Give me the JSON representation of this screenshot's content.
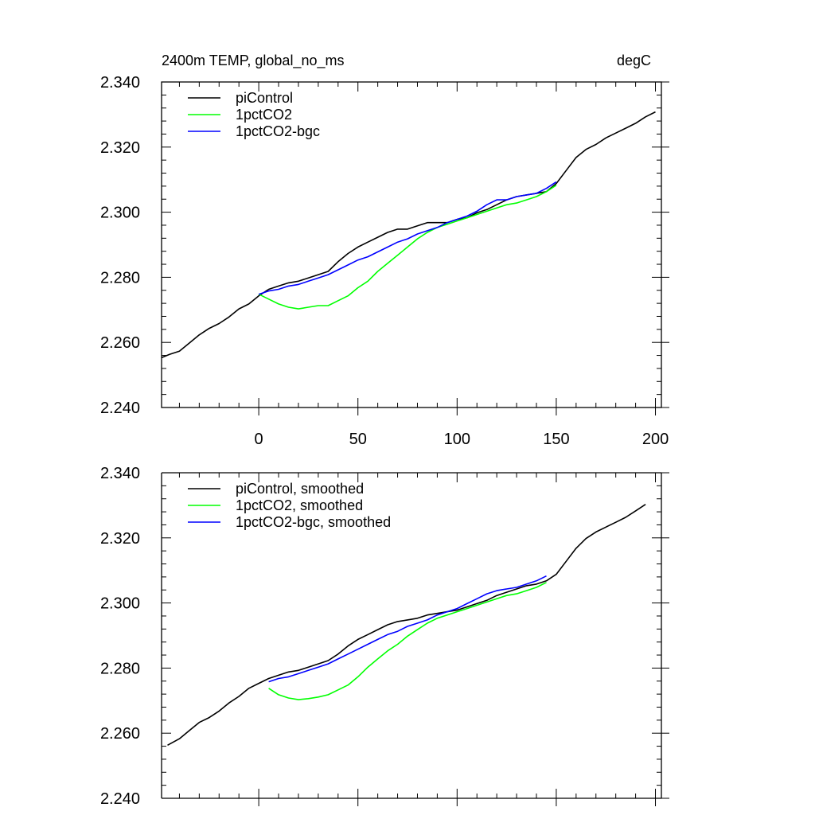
{
  "chart_data": [
    {
      "type": "line",
      "title": "2400m TEMP, global_no_ms",
      "units": "degC",
      "xlabel": "",
      "ylabel": "",
      "xlim": [
        -49,
        203
      ],
      "ylim": [
        2.24,
        2.34
      ],
      "x_ticks": [
        0,
        50,
        100,
        150,
        200
      ],
      "y_ticks": [
        "2.240",
        "2.260",
        "2.280",
        "2.300",
        "2.320",
        "2.340"
      ],
      "grid": false,
      "legend_position": "top-left",
      "series": [
        {
          "name": "piControl",
          "color": "#000000",
          "x": [
            -49,
            -45,
            -40,
            -35,
            -30,
            -25,
            -20,
            -15,
            -10,
            -5,
            0,
            5,
            10,
            15,
            20,
            25,
            30,
            35,
            40,
            45,
            50,
            55,
            60,
            65,
            70,
            75,
            80,
            85,
            90,
            95,
            100,
            105,
            110,
            115,
            120,
            125,
            130,
            135,
            140,
            145,
            150,
            155,
            160,
            165,
            170,
            175,
            180,
            185,
            190,
            195,
            200
          ],
          "y": [
            2.2553,
            2.2563,
            2.2573,
            2.2598,
            2.2623,
            2.2643,
            2.2658,
            2.2678,
            2.2703,
            2.2718,
            2.2743,
            2.2763,
            2.2773,
            2.2783,
            2.2788,
            2.2798,
            2.2808,
            2.2818,
            2.2848,
            2.2873,
            2.2893,
            2.2908,
            2.2923,
            2.2938,
            2.2948,
            2.2948,
            2.2958,
            2.2968,
            2.2968,
            2.2968,
            2.2978,
            2.2983,
            2.2998,
            2.3008,
            2.3023,
            2.3038,
            2.3048,
            2.3053,
            2.3058,
            2.3063,
            2.3088,
            2.3128,
            2.3168,
            2.3193,
            2.3208,
            2.3228,
            2.3243,
            2.3258,
            2.3273,
            2.3293,
            2.3308
          ]
        },
        {
          "name": "1pctCO2",
          "color": "#00ff00",
          "x": [
            0,
            5,
            10,
            15,
            20,
            25,
            30,
            35,
            40,
            45,
            50,
            55,
            60,
            65,
            70,
            75,
            80,
            85,
            90,
            95,
            100,
            105,
            110,
            115,
            120,
            125,
            130,
            135,
            140,
            145,
            150
          ],
          "y": [
            2.2748,
            2.2733,
            2.2718,
            2.2708,
            2.2703,
            2.2708,
            2.2713,
            2.2713,
            2.2728,
            2.2743,
            2.2768,
            2.2788,
            2.2818,
            2.2843,
            2.2868,
            2.2893,
            2.2918,
            2.2938,
            2.2953,
            2.2963,
            2.2973,
            2.2983,
            2.2993,
            2.3003,
            2.3013,
            2.3023,
            2.3028,
            2.3038,
            2.3048,
            2.3063,
            2.3083
          ]
        },
        {
          "name": "1pctCO2-bgc",
          "color": "#0000ff",
          "x": [
            0,
            5,
            10,
            15,
            20,
            25,
            30,
            35,
            40,
            45,
            50,
            55,
            60,
            65,
            70,
            75,
            80,
            85,
            90,
            95,
            100,
            105,
            110,
            115,
            120,
            125,
            130,
            135,
            140,
            145,
            150
          ],
          "y": [
            2.2748,
            2.2758,
            2.2763,
            2.2773,
            2.2778,
            2.2788,
            2.2798,
            2.2808,
            2.2823,
            2.2838,
            2.2853,
            2.2863,
            2.2878,
            2.2893,
            2.2908,
            2.2918,
            2.2933,
            2.2943,
            2.2953,
            2.2968,
            2.2978,
            2.2988,
            2.3003,
            2.3023,
            2.3038,
            2.3038,
            2.3048,
            2.3053,
            2.3058,
            2.3073,
            2.3093
          ]
        }
      ]
    },
    {
      "type": "line",
      "title": "",
      "xlabel": "",
      "ylabel": "",
      "xlim": [
        -49,
        203
      ],
      "ylim": [
        2.24,
        2.34
      ],
      "x_ticks": [
        0,
        50,
        100,
        150,
        200
      ],
      "y_ticks": [
        "2.240",
        "2.260",
        "2.280",
        "2.300",
        "2.320",
        "2.340"
      ],
      "grid": false,
      "legend_position": "top-left",
      "series": [
        {
          "name": "piControl, smoothed",
          "color": "#000000",
          "x": [
            -46,
            -40,
            -35,
            -30,
            -25,
            -20,
            -15,
            -10,
            -5,
            0,
            5,
            10,
            15,
            20,
            25,
            30,
            35,
            40,
            45,
            50,
            55,
            60,
            65,
            70,
            75,
            80,
            85,
            90,
            95,
            100,
            105,
            110,
            115,
            120,
            125,
            130,
            135,
            140,
            145,
            150,
            155,
            160,
            165,
            170,
            175,
            180,
            185,
            190,
            195
          ],
          "y": [
            2.2563,
            2.2583,
            2.2608,
            2.2633,
            2.2648,
            2.2668,
            2.2693,
            2.2713,
            2.2738,
            2.2753,
            2.2768,
            2.2778,
            2.2788,
            2.2793,
            2.2803,
            2.2813,
            2.2823,
            2.2843,
            2.2868,
            2.2888,
            2.2903,
            2.2918,
            2.2933,
            2.2943,
            2.2948,
            2.2953,
            2.2963,
            2.2968,
            2.2973,
            2.2978,
            2.2988,
            2.2998,
            2.3008,
            2.3023,
            2.3033,
            2.3043,
            2.3053,
            2.3058,
            2.3068,
            2.3088,
            2.3128,
            2.3168,
            2.3198,
            2.3218,
            2.3233,
            2.3248,
            2.3263,
            2.3283,
            2.3303
          ]
        },
        {
          "name": "1pctCO2, smoothed",
          "color": "#00ff00",
          "x": [
            5,
            10,
            15,
            20,
            25,
            30,
            35,
            40,
            45,
            50,
            55,
            60,
            65,
            70,
            75,
            80,
            85,
            90,
            95,
            100,
            105,
            110,
            115,
            120,
            125,
            130,
            135,
            140,
            145
          ],
          "y": [
            2.2738,
            2.2718,
            2.2708,
            2.2703,
            2.2706,
            2.2711,
            2.2718,
            2.2733,
            2.2748,
            2.2773,
            2.2803,
            2.2828,
            2.2853,
            2.2873,
            2.2898,
            2.2918,
            2.2938,
            2.2953,
            2.2963,
            2.2973,
            2.2983,
            2.2993,
            2.3003,
            2.3013,
            2.3023,
            2.3028,
            2.3038,
            2.3048,
            2.3063
          ]
        },
        {
          "name": "1pctCO2-bgc, smoothed",
          "color": "#0000ff",
          "x": [
            5,
            10,
            15,
            20,
            25,
            30,
            35,
            40,
            45,
            50,
            55,
            60,
            65,
            70,
            75,
            80,
            85,
            90,
            95,
            100,
            105,
            110,
            115,
            120,
            125,
            130,
            135,
            140,
            145
          ],
          "y": [
            2.2758,
            2.2768,
            2.2773,
            2.2783,
            2.2793,
            2.2803,
            2.2813,
            2.2828,
            2.2843,
            2.2858,
            2.2873,
            2.2888,
            2.2903,
            2.2913,
            2.2928,
            2.2938,
            2.2948,
            2.2963,
            2.2973,
            2.2983,
            2.2998,
            2.3013,
            2.3028,
            2.3038,
            2.3043,
            2.3048,
            2.3058,
            2.3068,
            2.3083
          ]
        }
      ]
    }
  ]
}
